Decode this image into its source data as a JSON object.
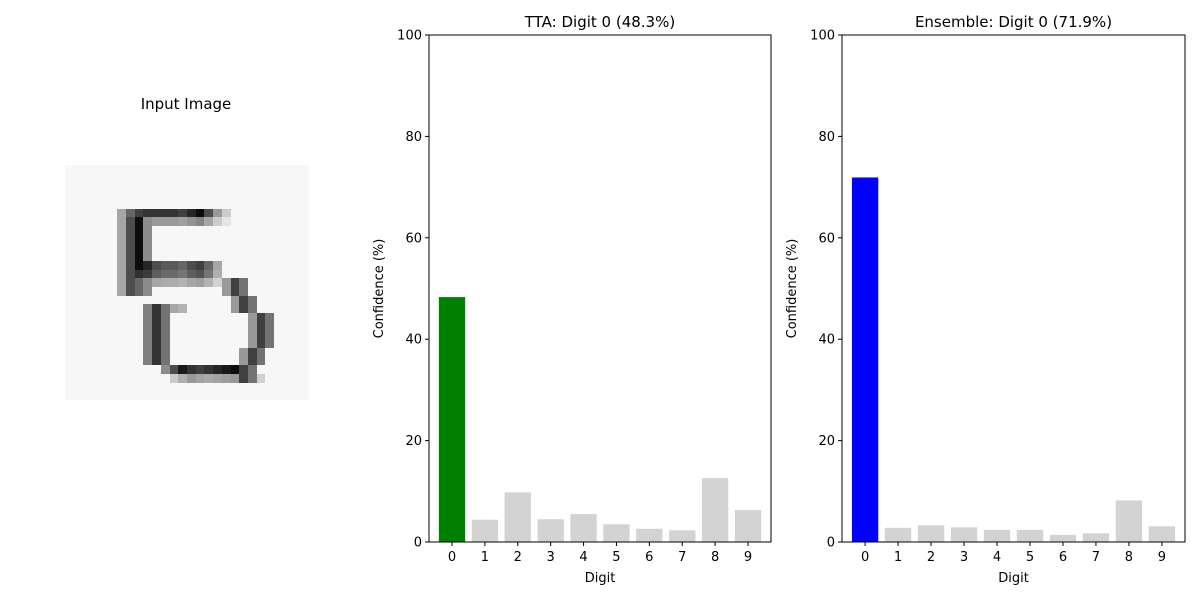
{
  "figure": {
    "input_image": {
      "title": "Input Image",
      "content": "grayscale handwritten digit resembling 5, 28x28 pixels"
    }
  },
  "chart_data": [
    {
      "type": "bar",
      "title": "TTA: Digit 0 (48.3%)",
      "xlabel": "Digit",
      "ylabel": "Confidence (%)",
      "categories": [
        "0",
        "1",
        "2",
        "3",
        "4",
        "5",
        "6",
        "7",
        "8",
        "9"
      ],
      "values": [
        48.3,
        4.4,
        9.8,
        4.5,
        5.5,
        3.5,
        2.6,
        2.3,
        12.6,
        6.3
      ],
      "ylim": [
        0,
        100
      ],
      "yticks": [
        0,
        20,
        40,
        60,
        80,
        100
      ],
      "highlight_index": 0,
      "highlight_color": "#008000",
      "bar_color": "#d3d3d3",
      "grid": false
    },
    {
      "type": "bar",
      "title": "Ensemble: Digit 0 (71.9%)",
      "xlabel": "Digit",
      "ylabel": "Confidence (%)",
      "categories": [
        "0",
        "1",
        "2",
        "3",
        "4",
        "5",
        "6",
        "7",
        "8",
        "9"
      ],
      "values": [
        71.9,
        2.8,
        3.3,
        2.9,
        2.4,
        2.4,
        1.4,
        1.7,
        8.2,
        3.1
      ],
      "ylim": [
        0,
        100
      ],
      "yticks": [
        0,
        20,
        40,
        60,
        80,
        100
      ],
      "highlight_index": 0,
      "highlight_color": "#0000ff",
      "bar_color": "#d3d3d3",
      "grid": false
    }
  ]
}
